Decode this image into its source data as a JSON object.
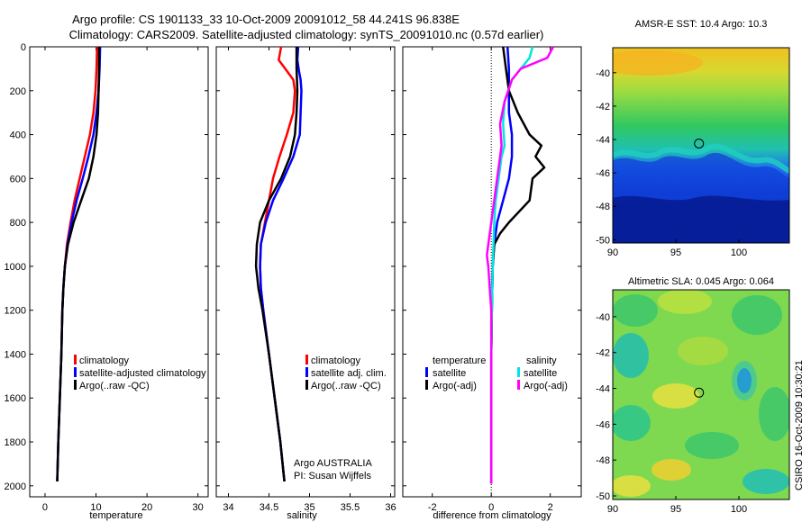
{
  "header": {
    "title_line1": "Argo profile: CS 1901133_33 10-Oct-2009 20091012_58 44.241S 96.838E",
    "title_line2": "Climatology: CARS2009. Satellite-adjusted climatology: synTS_20091010.nc (0.57d earlier)"
  },
  "colors": {
    "climatology": "#ff0000",
    "satellite": "#0000ff",
    "argo": "#000000",
    "satellite_salinity": "#00e5e5",
    "argo_salinity": "#ff00ff"
  },
  "chart_data": [
    {
      "id": "temperature",
      "type": "line",
      "xlabel": "temperature",
      "xlim": [
        -3,
        32
      ],
      "ylim": [
        2050,
        0
      ],
      "y_reversed": true,
      "xticks": [
        0,
        10,
        20,
        30
      ],
      "xtick_labels": [
        "0",
        "10",
        "20",
        "30"
      ],
      "yticks": [
        0,
        200,
        400,
        600,
        800,
        1000,
        1200,
        1400,
        1600,
        1800,
        2000
      ],
      "ytick_labels": [
        "0",
        "200",
        "400",
        "600",
        "800",
        "1000",
        "1200",
        "1400",
        "1600",
        "1800",
        "2000"
      ],
      "legend": [
        "climatology",
        "satellite-adjusted climatology",
        "Argo(..raw -QC)"
      ],
      "legend_position": "lower-left",
      "series": [
        {
          "name": "climatology",
          "color": "#ff0000",
          "points": [
            [
              10.2,
              0
            ],
            [
              10.1,
              100
            ],
            [
              9.9,
              200
            ],
            [
              9.5,
              300
            ],
            [
              8.8,
              400
            ],
            [
              7.8,
              500
            ],
            [
              6.8,
              600
            ],
            [
              5.8,
              700
            ],
            [
              5.0,
              800
            ],
            [
              4.3,
              900
            ],
            [
              3.9,
              1000
            ],
            [
              3.6,
              1100
            ],
            [
              3.4,
              1200
            ],
            [
              3.2,
              1400
            ],
            [
              2.9,
              1600
            ],
            [
              2.6,
              1800
            ],
            [
              2.4,
              1980
            ]
          ]
        },
        {
          "name": "satellite-adjusted climatology",
          "color": "#0000ff",
          "points": [
            [
              10.8,
              0
            ],
            [
              10.7,
              100
            ],
            [
              10.5,
              200
            ],
            [
              10.1,
              300
            ],
            [
              9.5,
              400
            ],
            [
              8.5,
              500
            ],
            [
              7.4,
              600
            ],
            [
              6.2,
              700
            ],
            [
              5.2,
              800
            ],
            [
              4.4,
              900
            ],
            [
              3.9,
              1000
            ],
            [
              3.6,
              1100
            ],
            [
              3.4,
              1200
            ],
            [
              3.2,
              1400
            ],
            [
              2.9,
              1600
            ],
            [
              2.6,
              1800
            ],
            [
              2.4,
              1980
            ]
          ]
        },
        {
          "name": "Argo(..raw -QC)",
          "color": "#000000",
          "points": [
            [
              10.6,
              0
            ],
            [
              10.6,
              100
            ],
            [
              10.5,
              200
            ],
            [
              10.4,
              300
            ],
            [
              10.1,
              400
            ],
            [
              9.5,
              500
            ],
            [
              8.6,
              600
            ],
            [
              7.1,
              700
            ],
            [
              5.6,
              800
            ],
            [
              4.5,
              900
            ],
            [
              3.9,
              1000
            ],
            [
              3.6,
              1100
            ],
            [
              3.4,
              1200
            ],
            [
              3.2,
              1400
            ],
            [
              2.9,
              1600
            ],
            [
              2.6,
              1800
            ],
            [
              2.4,
              1980
            ]
          ]
        }
      ]
    },
    {
      "id": "salinity",
      "type": "line",
      "xlabel": "salinity",
      "xlim": [
        33.85,
        36.05
      ],
      "ylim": [
        2050,
        0
      ],
      "y_reversed": true,
      "xticks": [
        34,
        34.5,
        35,
        35.5,
        36
      ],
      "xtick_labels": [
        "34",
        "34.5",
        "35",
        "35.5",
        "36"
      ],
      "legend": [
        "climatology",
        "satellite adj. clim.",
        "Argo(..raw -QC)"
      ],
      "legend_position": "lower-right",
      "annotation_line1": "Argo AUSTRALIA",
      "annotation_line2": "PI: Susan Wijffels",
      "series": [
        {
          "name": "climatology",
          "color": "#ff0000",
          "points": [
            [
              34.65,
              0
            ],
            [
              34.62,
              60
            ],
            [
              34.72,
              110
            ],
            [
              34.8,
              150
            ],
            [
              34.82,
              200
            ],
            [
              34.8,
              300
            ],
            [
              34.72,
              400
            ],
            [
              34.63,
              500
            ],
            [
              34.55,
              600
            ],
            [
              34.5,
              700
            ],
            [
              34.45,
              800
            ],
            [
              34.4,
              900
            ],
            [
              34.39,
              1000
            ],
            [
              34.4,
              1100
            ],
            [
              34.43,
              1200
            ],
            [
              34.5,
              1400
            ],
            [
              34.57,
              1600
            ],
            [
              34.64,
              1800
            ],
            [
              34.69,
              1980
            ]
          ]
        },
        {
          "name": "satellite adj. clim.",
          "color": "#0000ff",
          "points": [
            [
              34.86,
              0
            ],
            [
              34.85,
              60
            ],
            [
              34.87,
              110
            ],
            [
              34.89,
              150
            ],
            [
              34.9,
              200
            ],
            [
              34.89,
              300
            ],
            [
              34.88,
              400
            ],
            [
              34.8,
              500
            ],
            [
              34.68,
              600
            ],
            [
              34.55,
              700
            ],
            [
              34.46,
              800
            ],
            [
              34.4,
              900
            ],
            [
              34.39,
              1000
            ],
            [
              34.4,
              1100
            ],
            [
              34.43,
              1200
            ],
            [
              34.5,
              1400
            ],
            [
              34.57,
              1600
            ],
            [
              34.64,
              1800
            ],
            [
              34.69,
              1980
            ]
          ]
        },
        {
          "name": "Argo(..raw -QC)",
          "color": "#000000",
          "points": [
            [
              34.84,
              0
            ],
            [
              34.84,
              100
            ],
            [
              34.85,
              200
            ],
            [
              34.84,
              300
            ],
            [
              34.82,
              400
            ],
            [
              34.76,
              500
            ],
            [
              34.65,
              600
            ],
            [
              34.5,
              700
            ],
            [
              34.39,
              800
            ],
            [
              34.35,
              900
            ],
            [
              34.34,
              1000
            ],
            [
              34.37,
              1100
            ],
            [
              34.42,
              1200
            ],
            [
              34.5,
              1400
            ],
            [
              34.57,
              1600
            ],
            [
              34.64,
              1800
            ],
            [
              34.69,
              1980
            ]
          ]
        }
      ]
    },
    {
      "id": "difference",
      "type": "line",
      "xlabel": "difference from climatology",
      "xlim": [
        -3,
        3.05
      ],
      "ylim": [
        2050,
        0
      ],
      "y_reversed": true,
      "zero_line": 0,
      "xticks": [
        -2,
        0,
        2
      ],
      "xtick_labels": [
        "-2",
        "0",
        "2"
      ],
      "legend_temperature_title": "temperature",
      "legend_salinity_title": "salinity",
      "legend_temperature": [
        "satellite",
        "Argo(-adj)"
      ],
      "legend_salinity": [
        "satellite",
        "Argo(-adj)"
      ],
      "series": [
        {
          "name": "temperature satellite",
          "color": "#0000ff",
          "points": [
            [
              0.55,
              0
            ],
            [
              0.6,
              100
            ],
            [
              0.6,
              200
            ],
            [
              0.6,
              300
            ],
            [
              0.7,
              400
            ],
            [
              0.7,
              500
            ],
            [
              0.6,
              600
            ],
            [
              0.4,
              700
            ],
            [
              0.2,
              800
            ],
            [
              0.1,
              900
            ],
            [
              0.05,
              1000
            ],
            [
              0.02,
              1200
            ],
            [
              0,
              1400
            ],
            [
              0,
              1600
            ],
            [
              0,
              1800
            ],
            [
              0,
              1990
            ]
          ]
        },
        {
          "name": "temperature Argo(-adj)",
          "color": "#000000",
          "points": [
            [
              0.4,
              0
            ],
            [
              0.5,
              100
            ],
            [
              0.6,
              200
            ],
            [
              0.9,
              300
            ],
            [
              1.3,
              400
            ],
            [
              1.7,
              450
            ],
            [
              1.5,
              500
            ],
            [
              1.8,
              550
            ],
            [
              1.4,
              600
            ],
            [
              1.3,
              700
            ],
            [
              0.6,
              800
            ],
            [
              0.3,
              850
            ],
            [
              0.1,
              900
            ],
            [
              0.05,
              1000
            ],
            [
              0.02,
              1200
            ],
            [
              0,
              1400
            ],
            [
              0,
              1600
            ],
            [
              0,
              1800
            ],
            [
              0,
              1990
            ]
          ]
        },
        {
          "name": "salinity satellite",
          "color": "#00e5e5",
          "points": [
            [
              1.4,
              0
            ],
            [
              1.3,
              50
            ],
            [
              1.0,
              100
            ],
            [
              0.7,
              150
            ],
            [
              0.45,
              250
            ],
            [
              0.4,
              350
            ],
            [
              0.45,
              450
            ],
            [
              0.35,
              500
            ],
            [
              0.25,
              600
            ],
            [
              0.15,
              700
            ],
            [
              0.1,
              800
            ],
            [
              0.05,
              1000
            ],
            [
              0.02,
              1200
            ],
            [
              0,
              1400
            ],
            [
              0,
              1600
            ],
            [
              0,
              1800
            ],
            [
              0,
              1990
            ]
          ]
        },
        {
          "name": "salinity Argo(-adj)",
          "color": "#ff00ff",
          "points": [
            [
              2.1,
              0
            ],
            [
              1.9,
              50
            ],
            [
              1.0,
              100
            ],
            [
              0.7,
              150
            ],
            [
              0.45,
              250
            ],
            [
              0.3,
              350
            ],
            [
              0.35,
              450
            ],
            [
              0.3,
              500
            ],
            [
              0.2,
              600
            ],
            [
              0.1,
              700
            ],
            [
              0.0,
              800
            ],
            [
              -0.1,
              900
            ],
            [
              -0.15,
              950
            ],
            [
              -0.1,
              1000
            ],
            [
              -0.05,
              1100
            ],
            [
              0,
              1200
            ],
            [
              0,
              1400
            ],
            [
              0,
              1600
            ],
            [
              0,
              1800
            ],
            [
              0,
              1990
            ]
          ]
        }
      ]
    },
    {
      "id": "sst_map",
      "type": "heatmap",
      "title": "AMSR-E SST: 10.4 Argo: 10.3",
      "xlim": [
        90,
        104
      ],
      "ylim": [
        -50.2,
        -38.5
      ],
      "xticks": [
        90,
        95,
        100
      ],
      "xtick_labels": [
        "90",
        "95",
        "100"
      ],
      "yticks": [
        -40,
        -42,
        -44,
        -46,
        -48,
        -50
      ],
      "ytick_labels": [
        "-40",
        "-42",
        "-44",
        "-46",
        "-48",
        "-50"
      ],
      "marker": [
        96.838,
        -44.241
      ],
      "colormap": "jet"
    },
    {
      "id": "sla_map",
      "type": "heatmap",
      "title": "Altimetric SLA: 0.045 Argo: 0.064",
      "xlim": [
        90,
        104
      ],
      "ylim": [
        -50.2,
        -38.5
      ],
      "xticks": [
        90,
        95,
        100
      ],
      "xtick_labels": [
        "90",
        "95",
        "100"
      ],
      "yticks": [
        -40,
        -42,
        -44,
        -46,
        -48,
        -50
      ],
      "ytick_labels": [
        "-40",
        "-42",
        "-44",
        "-46",
        "-48",
        "-50"
      ],
      "marker": [
        96.838,
        -44.241
      ],
      "colormap": "jet"
    }
  ],
  "side_label": "CSIRO 16-Oct-2009 10:30:21"
}
